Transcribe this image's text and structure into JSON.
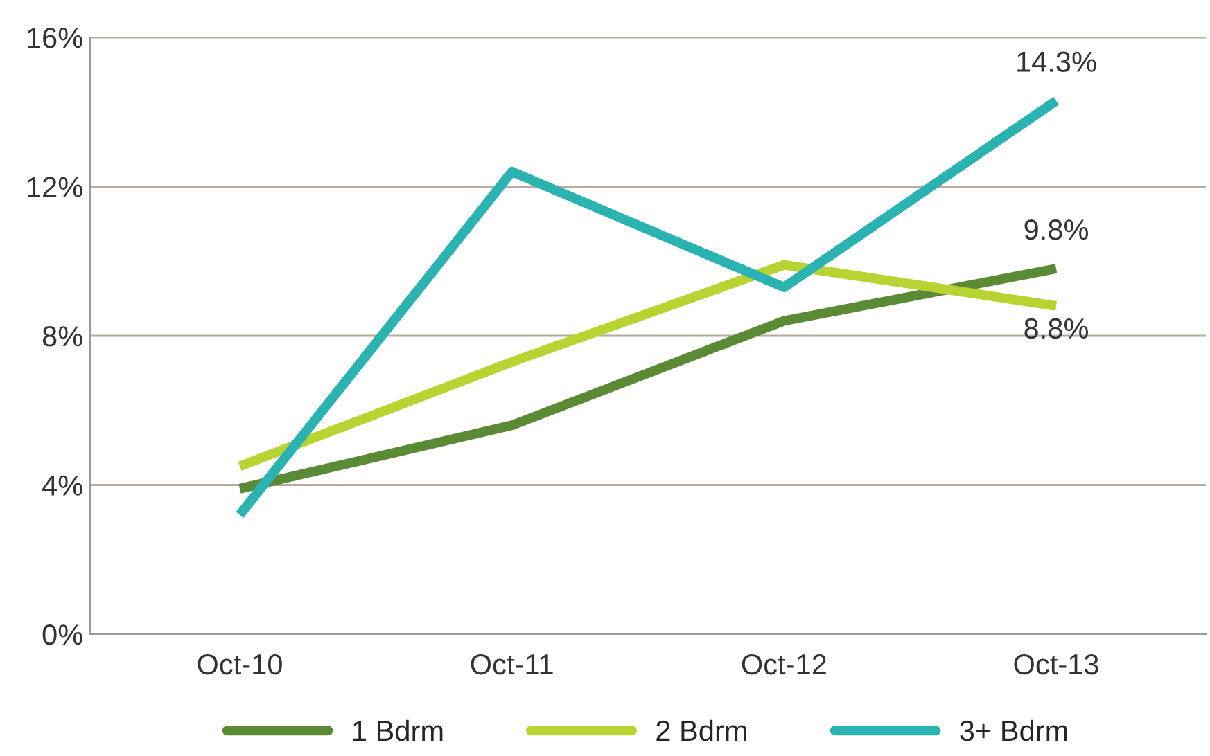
{
  "chart_data": {
    "type": "line",
    "categories": [
      "Oct-10",
      "Oct-11",
      "Oct-12",
      "Oct-13"
    ],
    "series": [
      {
        "name": "1 Bdrm",
        "color": "#5b8a34",
        "values": [
          3.9,
          5.6,
          8.4,
          9.8
        ],
        "value_labels": [
          null,
          null,
          null,
          "9.8%"
        ]
      },
      {
        "name": "2 Bdrm",
        "color": "#b8d432",
        "values": [
          4.5,
          7.3,
          9.9,
          8.8
        ],
        "value_labels": [
          null,
          null,
          null,
          "8.8%"
        ]
      },
      {
        "name": "3+ Bdrm",
        "color": "#2bb3b1",
        "values": [
          3.2,
          12.4,
          9.3,
          14.3
        ],
        "value_labels": [
          null,
          null,
          null,
          "14.3%"
        ]
      }
    ],
    "ylim": [
      0,
      16
    ],
    "yticks": [
      {
        "value": 0,
        "label": "0%"
      },
      {
        "value": 4,
        "label": "4%"
      },
      {
        "value": 8,
        "label": "8%"
      },
      {
        "value": 12,
        "label": "12%"
      },
      {
        "value": 16,
        "label": "16%"
      }
    ],
    "grid": "y",
    "legend": "bottom",
    "marker": "none",
    "line_style": "solid"
  }
}
